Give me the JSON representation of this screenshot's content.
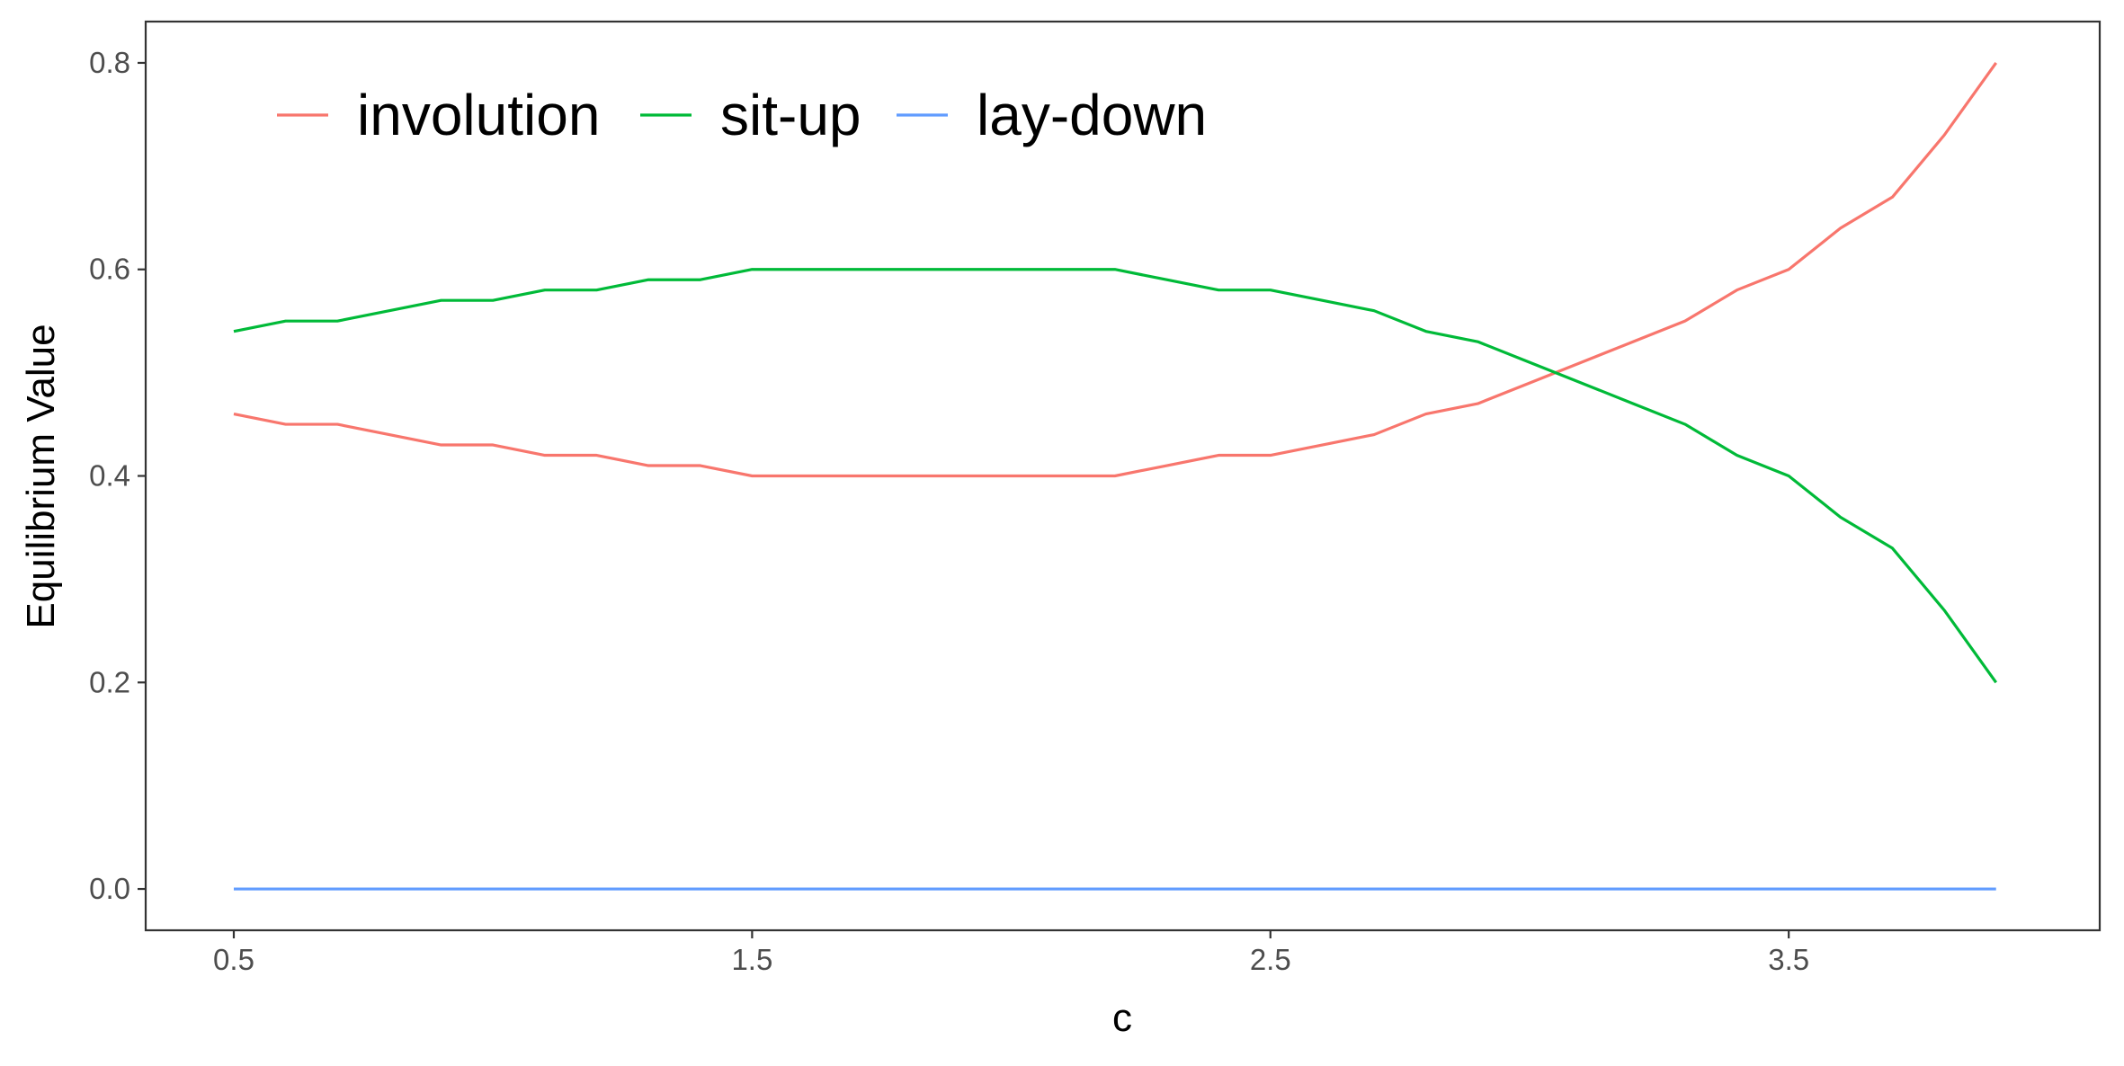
{
  "chart_data": {
    "type": "line",
    "title": "",
    "xlabel": "c",
    "ylabel": "Equilibrium Value",
    "xlim": [
      0.33,
      4.1
    ],
    "ylim": [
      -0.04,
      0.84
    ],
    "x_ticks": [
      0.5,
      1.5,
      2.5,
      3.5
    ],
    "x_tick_labels": [
      "0.5",
      "1.5",
      "2.5",
      "3.5"
    ],
    "y_ticks": [
      0.0,
      0.2,
      0.4,
      0.6,
      0.8
    ],
    "y_tick_labels": [
      "0.0",
      "0.2",
      "0.4",
      "0.6",
      "0.8"
    ],
    "grid": false,
    "legend_position": "top-left",
    "x": [
      0.5,
      0.6,
      0.7,
      0.8,
      0.9,
      1.0,
      1.1,
      1.2,
      1.3,
      1.4,
      1.5,
      1.6,
      1.7,
      1.8,
      1.9,
      2.0,
      2.1,
      2.2,
      2.3,
      2.4,
      2.5,
      2.6,
      2.7,
      2.8,
      2.9,
      3.0,
      3.1,
      3.2,
      3.3,
      3.4,
      3.5,
      3.6,
      3.7,
      3.8,
      3.9
    ],
    "series": [
      {
        "name": "involution",
        "color": "#F8766D",
        "values": [
          0.46,
          0.45,
          0.45,
          0.44,
          0.43,
          0.43,
          0.42,
          0.42,
          0.41,
          0.41,
          0.4,
          0.4,
          0.4,
          0.4,
          0.4,
          0.4,
          0.4,
          0.4,
          0.41,
          0.42,
          0.42,
          0.43,
          0.44,
          0.46,
          0.47,
          0.49,
          0.51,
          0.53,
          0.55,
          0.58,
          0.6,
          0.64,
          0.67,
          0.73,
          0.8
        ]
      },
      {
        "name": "sit-up",
        "color": "#00BA38",
        "values": [
          0.54,
          0.55,
          0.55,
          0.56,
          0.57,
          0.57,
          0.58,
          0.58,
          0.59,
          0.59,
          0.6,
          0.6,
          0.6,
          0.6,
          0.6,
          0.6,
          0.6,
          0.6,
          0.59,
          0.58,
          0.58,
          0.57,
          0.56,
          0.54,
          0.53,
          0.51,
          0.49,
          0.47,
          0.45,
          0.42,
          0.4,
          0.36,
          0.33,
          0.27,
          0.2
        ]
      },
      {
        "name": "lay-down",
        "color": "#619CFF",
        "values": [
          0,
          0,
          0,
          0,
          0,
          0,
          0,
          0,
          0,
          0,
          0,
          0,
          0,
          0,
          0,
          0,
          0,
          0,
          0,
          0,
          0,
          0,
          0,
          0,
          0,
          0,
          0,
          0,
          0,
          0,
          0,
          0,
          0,
          0,
          0
        ]
      }
    ]
  }
}
